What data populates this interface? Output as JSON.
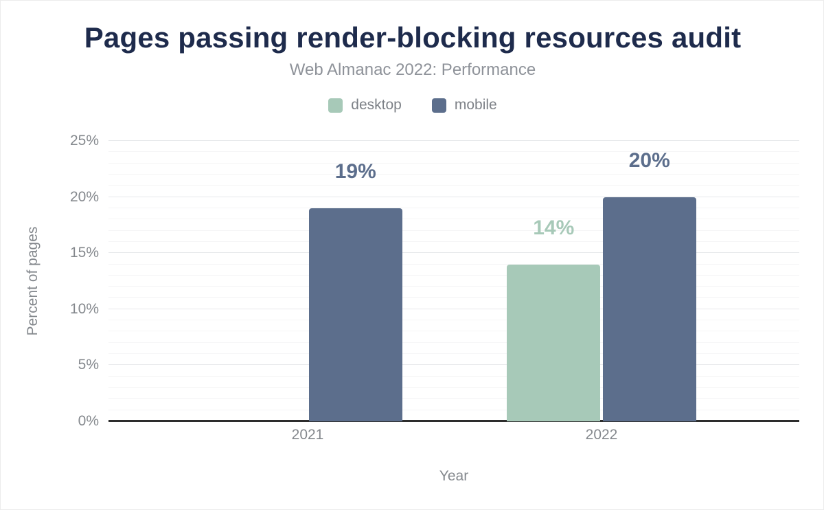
{
  "chart_data": {
    "type": "bar",
    "title": "Pages passing render-blocking resources audit",
    "subtitle": "Web Almanac 2022: Performance",
    "xlabel": "Year",
    "ylabel": "Percent of pages",
    "categories": [
      "2021",
      "2022"
    ],
    "series": [
      {
        "name": "desktop",
        "color": "#a7c9b8",
        "values": [
          null,
          14
        ],
        "data_labels": [
          null,
          "14%"
        ]
      },
      {
        "name": "mobile",
        "color": "#5c6e8c",
        "values": [
          19,
          20
        ],
        "data_labels": [
          "19%",
          "20%"
        ]
      }
    ],
    "ylim": [
      0,
      25
    ],
    "y_ticks": [
      {
        "value": 0,
        "label": "0%"
      },
      {
        "value": 5,
        "label": "5%"
      },
      {
        "value": 10,
        "label": "10%"
      },
      {
        "value": 15,
        "label": "15%"
      },
      {
        "value": 20,
        "label": "20%"
      },
      {
        "value": 25,
        "label": "25%"
      }
    ],
    "y_minor_step": 1,
    "grid": "horizontal",
    "legend_position": "top",
    "value_suffix": "%",
    "colors": {
      "title": "#1e2b4c",
      "subtitle": "#8e9299",
      "axis_line": "#2d2d2d",
      "tick_label": "#84888d",
      "legend_label": "#7d8187",
      "grid_major": "#e6e8ea",
      "grid_minor": "#f5f5f6"
    }
  }
}
